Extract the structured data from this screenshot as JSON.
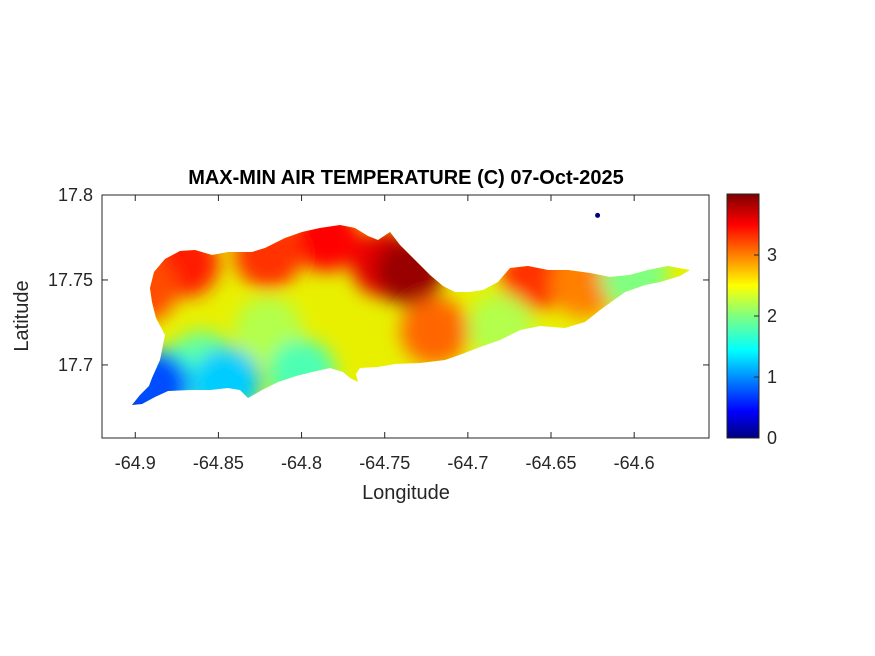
{
  "chart_data": {
    "type": "heatmap",
    "title": "MAX-MIN AIR TEMPERATURE (C) 07-Oct-2025",
    "xlabel": "Longitude",
    "ylabel": "Latitude",
    "xlim": [
      -64.92,
      -64.555
    ],
    "ylim": [
      17.657,
      17.8
    ],
    "x_ticks": [
      -64.9,
      -64.85,
      -64.8,
      -64.75,
      -64.7,
      -64.65,
      -64.6
    ],
    "x_tick_labels": [
      "-64.9",
      "-64.85",
      "-64.8",
      "-64.75",
      "-64.7",
      "-64.65",
      "-64.6"
    ],
    "y_ticks": [
      17.7,
      17.75,
      17.8
    ],
    "y_tick_labels": [
      "17.7",
      "17.75",
      "17.8"
    ],
    "colorbar": {
      "colormap": "jet",
      "range": [
        0,
        4
      ],
      "ticks": [
        0,
        1,
        2,
        3
      ],
      "tick_labels": [
        "0",
        "1",
        "2",
        "3"
      ]
    },
    "grid": false,
    "hotspots": [
      {
        "lon": -64.75,
        "lat": 17.76,
        "value": 3.6
      },
      {
        "lon": -64.735,
        "lat": 17.755,
        "value": 3.9
      },
      {
        "lon": -64.785,
        "lat": 17.775,
        "value": 3.5
      },
      {
        "lon": -64.82,
        "lat": 17.765,
        "value": 3.3
      },
      {
        "lon": -64.87,
        "lat": 17.76,
        "value": 3.4
      },
      {
        "lon": -64.895,
        "lat": 17.745,
        "value": 3.2
      },
      {
        "lon": -64.66,
        "lat": 17.752,
        "value": 3.3
      },
      {
        "lon": -64.63,
        "lat": 17.748,
        "value": 3.0
      },
      {
        "lon": -64.72,
        "lat": 17.72,
        "value": 3.1
      },
      {
        "lon": -64.82,
        "lat": 17.72,
        "value": 2.2
      },
      {
        "lon": -64.86,
        "lat": 17.7,
        "value": 1.9
      },
      {
        "lon": -64.88,
        "lat": 17.69,
        "value": 1.7
      },
      {
        "lon": -64.845,
        "lat": 17.69,
        "value": 1.3
      },
      {
        "lon": -64.8,
        "lat": 17.695,
        "value": 1.8
      },
      {
        "lon": -64.6,
        "lat": 17.752,
        "value": 2.0
      },
      {
        "lon": -64.68,
        "lat": 17.722,
        "value": 2.2
      },
      {
        "lon": -64.9,
        "lat": 17.68,
        "value": 0.2
      },
      {
        "lon": -64.888,
        "lat": 17.688,
        "value": 0.8
      },
      {
        "lon": -64.622,
        "lat": 17.788,
        "value": 0.0
      }
    ]
  }
}
